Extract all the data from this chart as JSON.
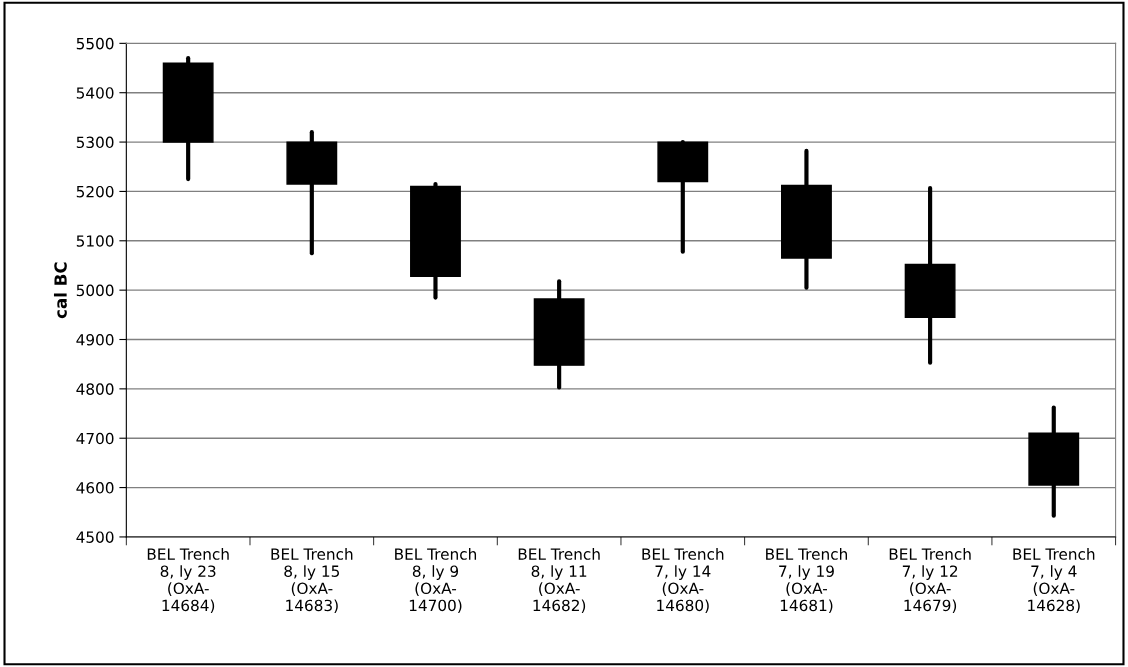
{
  "chart_data": {
    "type": "candlestick",
    "ylabel": "cal BC",
    "categories": [
      "BEL Trench\n8, ly 23\n(OxA-\n14684)",
      "BEL Trench\n8, ly 15\n(OxA-\n14683)",
      "BEL Trench\n8, ly 9\n(OxA-\n14700)",
      "BEL Trench\n8, ly 11\n(OxA-\n14682)",
      "BEL Trench\n7, ly 14\n(OxA-\n14680)",
      "BEL Trench\n7, ly 19\n(OxA-\n14681)",
      "BEL Trench\n7, ly 12\n(OxA-\n14679)",
      "BEL Trench\n7, ly 4\n(OxA-\n14628)"
    ],
    "ohlc": [
      [
        5460,
        5470,
        5225,
        5300
      ],
      [
        5300,
        5320,
        5075,
        5215
      ],
      [
        5210,
        5215,
        4985,
        5028
      ],
      [
        4982,
        5018,
        4803,
        4848
      ],
      [
        5300,
        5300,
        5078,
        5220
      ],
      [
        5212,
        5282,
        5005,
        5065
      ],
      [
        5052,
        5207,
        4853,
        4945
      ],
      [
        4710,
        4762,
        4543,
        4605
      ]
    ],
    "color": "#000000",
    "ylim": [
      4500,
      5500
    ],
    "yticks": [
      4500,
      4600,
      4700,
      4800,
      4900,
      5000,
      5100,
      5200,
      5300,
      5400,
      5500
    ],
    "grid": "y"
  }
}
